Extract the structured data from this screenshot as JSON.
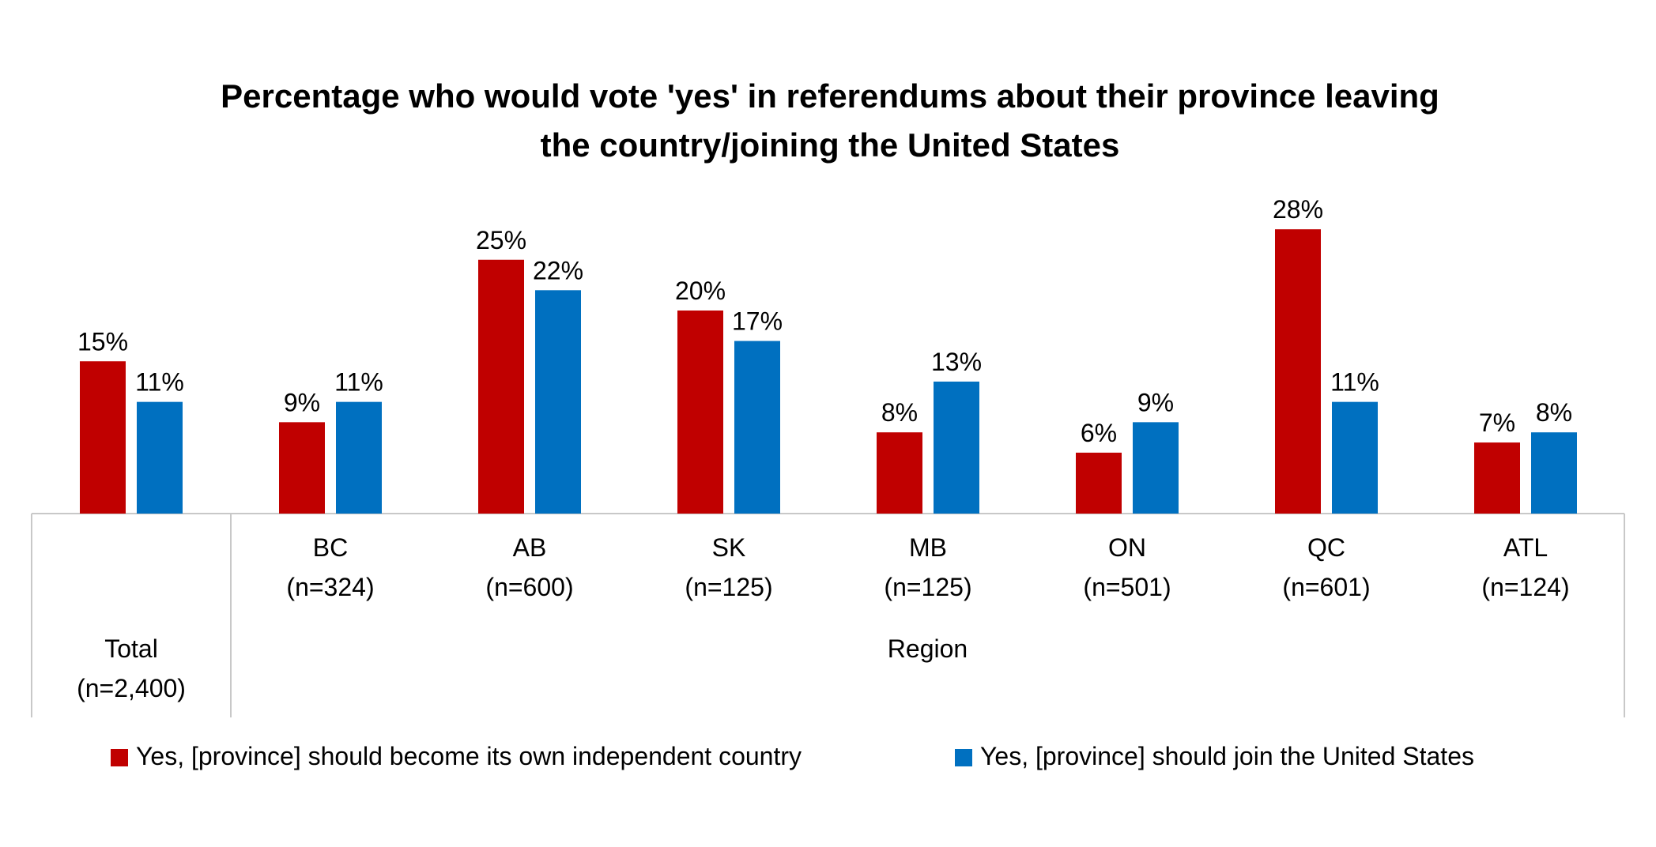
{
  "chart_data": {
    "type": "bar",
    "title": [
      "Percentage who would vote 'yes' in referendums about their province leaving",
      "the country/joining the United States"
    ],
    "categories": [
      {
        "name": "Total",
        "n": "(n=2,400)"
      },
      {
        "name": "BC",
        "n": "(n=324)"
      },
      {
        "name": "AB",
        "n": "(n=600)"
      },
      {
        "name": "SK",
        "n": "(n=125)"
      },
      {
        "name": "MB",
        "n": "(n=125)"
      },
      {
        "name": "ON",
        "n": "(n=501)"
      },
      {
        "name": "QC",
        "n": "(n=601)"
      },
      {
        "name": "ATL",
        "n": "(n=124)"
      }
    ],
    "groups": [
      {
        "label": "Total",
        "categories": [
          "Total"
        ]
      },
      {
        "label": "Region",
        "categories": [
          "BC",
          "AB",
          "SK",
          "MB",
          "ON",
          "QC",
          "ATL"
        ]
      }
    ],
    "series": [
      {
        "name": "Yes, [province] should become its own independent country",
        "color": "#C00000",
        "values": [
          15,
          9,
          25,
          20,
          8,
          6,
          28,
          7
        ],
        "labels": [
          "15%",
          "9%",
          "25%",
          "20%",
          "8%",
          "6%",
          "28%",
          "7%"
        ]
      },
      {
        "name": "Yes, [province] should join the United States",
        "color": "#0070C0",
        "values": [
          11,
          11,
          22,
          17,
          13,
          9,
          11,
          8
        ],
        "labels": [
          "11%",
          "11%",
          "22%",
          "17%",
          "13%",
          "9%",
          "11%",
          "8%"
        ]
      }
    ],
    "ylim": [
      0,
      30
    ],
    "legend_position": "bottom",
    "grid": false
  }
}
